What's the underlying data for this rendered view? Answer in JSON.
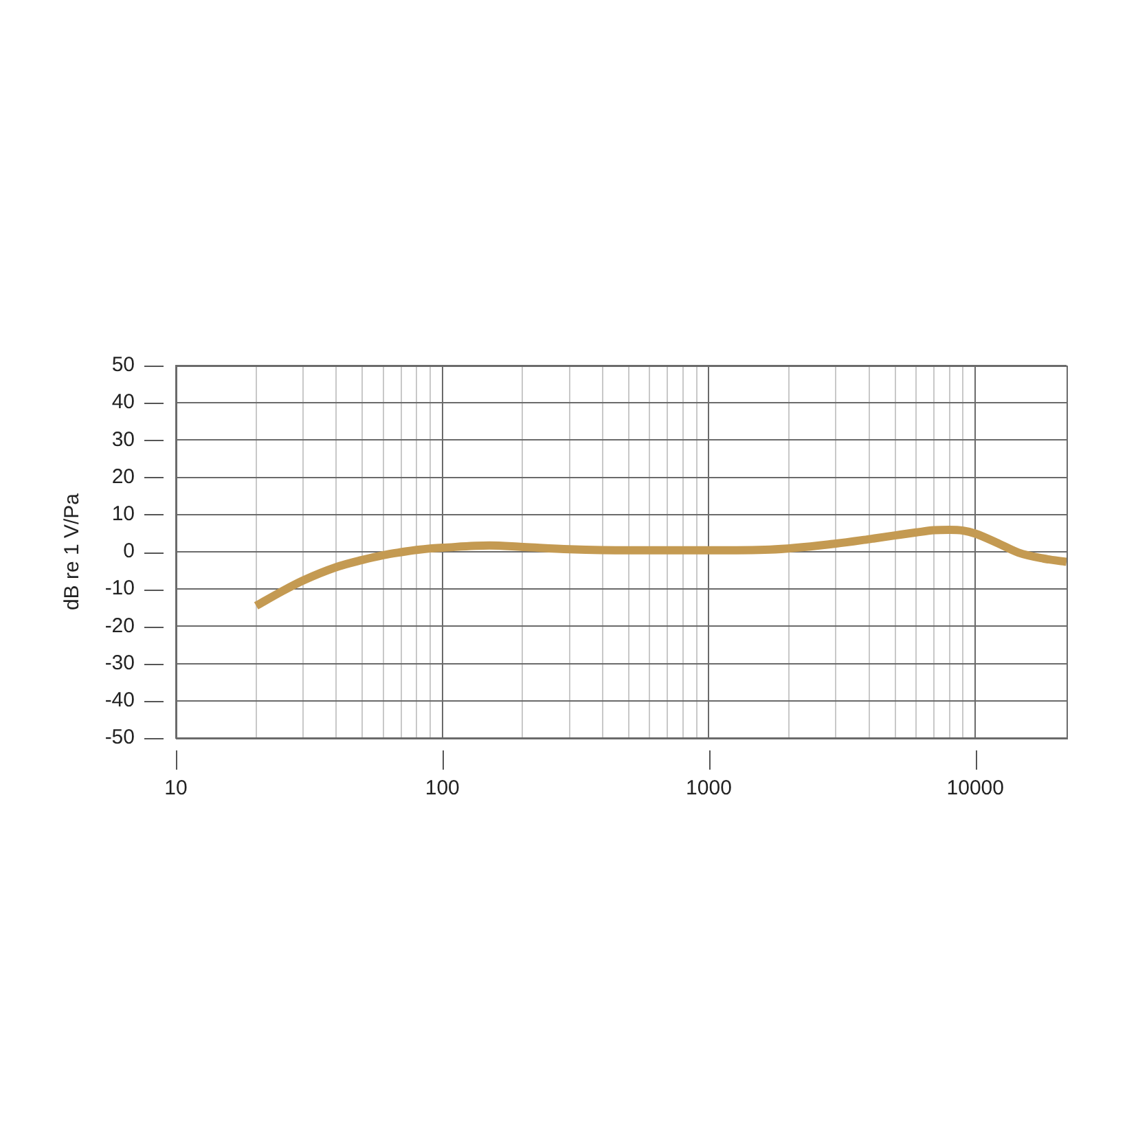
{
  "chart_data": {
    "type": "line",
    "ylabel": "dB re 1 V/Pa",
    "x": [
      20,
      25,
      30,
      40,
      50,
      60,
      70,
      80,
      90,
      100,
      150,
      200,
      300,
      500,
      1000,
      1700,
      3000,
      4000,
      5000,
      6000,
      7000,
      8000,
      9000,
      10000,
      12000,
      14500,
      18000,
      22000
    ],
    "series": [
      {
        "color": "#c49a52",
        "values": [
          -14.5,
          -10.6,
          -7.7,
          -4.1,
          -2.2,
          -0.9,
          -0.1,
          0.5,
          0.9,
          1.1,
          1.7,
          1.3,
          0.7,
          0.4,
          0.4,
          0.6,
          2.2,
          3.4,
          4.4,
          5.2,
          5.8,
          5.9,
          5.7,
          4.9,
          2.5,
          -0.2,
          -1.8,
          -2.7
        ]
      }
    ],
    "xlim": [
      10,
      22000
    ],
    "ylim": [
      -50,
      50
    ],
    "xticks": [
      10,
      {
        "value": 20,
        "label": null
      },
      {
        "value": 30,
        "label": null
      },
      {
        "value": 40,
        "label": null
      },
      {
        "value": 50,
        "label": null
      },
      {
        "value": 60,
        "label": null
      },
      {
        "value": 70,
        "label": null
      },
      {
        "value": 80,
        "label": null
      },
      {
        "value": 90,
        "label": null
      },
      100,
      {
        "value": 200,
        "label": null
      },
      {
        "value": 300,
        "label": null
      },
      {
        "value": 400,
        "label": null
      },
      {
        "value": 500,
        "label": null
      },
      {
        "value": 600,
        "label": null
      },
      {
        "value": 700,
        "label": null
      },
      {
        "value": 800,
        "label": null
      },
      {
        "value": 900,
        "label": null
      },
      1000,
      {
        "value": 2000,
        "label": null
      },
      {
        "value": 3000,
        "label": null
      },
      {
        "value": 4000,
        "label": null
      },
      {
        "value": 5000,
        "label": null
      },
      {
        "value": 6000,
        "label": null
      },
      {
        "value": 7000,
        "label": null
      },
      {
        "value": 8000,
        "label": null
      },
      {
        "value": 9000,
        "label": null
      },
      10000
    ],
    "yticks": [
      -50,
      -40,
      -30,
      -20,
      -10,
      0,
      10,
      20,
      30,
      40,
      50
    ],
    "log": "x",
    "grid": true,
    "marker": "none",
    "line_style": "solid"
  }
}
